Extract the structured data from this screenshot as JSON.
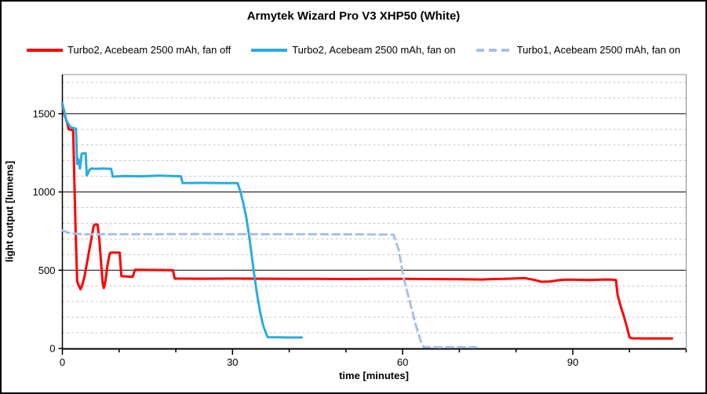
{
  "chart_data": {
    "type": "line",
    "title": "Armytek Wizard Pro V3 XHP50 (White)",
    "xlabel": "time [minutes]",
    "ylabel": "light output [lumens]",
    "xlim": [
      0,
      110
    ],
    "ylim": [
      0,
      1750
    ],
    "x_major_ticks": [
      0,
      30,
      60,
      90
    ],
    "x_minor_step": 10,
    "y_major_ticks": [
      0,
      500,
      1000,
      1500
    ],
    "y_minor_step": 100,
    "grid": "major solid black horizontal, minor dashed gray horizontal, no vertical gridlines",
    "legend_position": "top",
    "colors": {
      "plot_border": "#8c8c8c",
      "major_grid": "#000000",
      "minor_grid": "#c3c3c3",
      "axis": "#000000",
      "text": "#000000"
    },
    "series": [
      {
        "name": "Turbo2, Acebeam 2500 mAh, fan off",
        "color": "#fe0000",
        "style": "solid",
        "points": [
          [
            0,
            1555
          ],
          [
            0.4,
            1490
          ],
          [
            0.9,
            1435
          ],
          [
            1.1,
            1400
          ],
          [
            1.9,
            1395
          ],
          [
            2.3,
            800
          ],
          [
            2.6,
            430
          ],
          [
            2.9,
            400
          ],
          [
            3.2,
            378
          ],
          [
            3.5,
            405
          ],
          [
            3.9,
            460
          ],
          [
            4.3,
            540
          ],
          [
            4.7,
            620
          ],
          [
            5.1,
            700
          ],
          [
            5.5,
            780
          ],
          [
            5.7,
            792
          ],
          [
            6.2,
            792
          ],
          [
            6.5,
            700
          ],
          [
            6.8,
            560
          ],
          [
            7.1,
            420
          ],
          [
            7.3,
            386
          ],
          [
            7.6,
            430
          ],
          [
            7.9,
            520
          ],
          [
            8.3,
            600
          ],
          [
            8.5,
            612
          ],
          [
            10.1,
            612
          ],
          [
            10.4,
            462
          ],
          [
            12.4,
            458
          ],
          [
            12.8,
            503
          ],
          [
            19.5,
            500
          ],
          [
            19.8,
            447
          ],
          [
            25,
            446
          ],
          [
            30,
            447
          ],
          [
            35,
            446
          ],
          [
            40,
            445
          ],
          [
            45,
            445
          ],
          [
            50,
            444
          ],
          [
            55,
            445
          ],
          [
            60,
            445
          ],
          [
            65,
            444
          ],
          [
            70,
            443
          ],
          [
            74,
            441
          ],
          [
            76,
            444
          ],
          [
            78,
            445
          ],
          [
            80,
            448
          ],
          [
            81.5,
            450
          ],
          [
            83,
            440
          ],
          [
            84.5,
            426
          ],
          [
            86,
            428
          ],
          [
            87.5,
            436
          ],
          [
            89,
            440
          ],
          [
            91,
            439
          ],
          [
            93,
            437
          ],
          [
            95,
            440
          ],
          [
            96.5,
            441
          ],
          [
            97.6,
            437
          ],
          [
            97.9,
            345
          ],
          [
            98.4,
            275
          ],
          [
            99.1,
            195
          ],
          [
            99.6,
            130
          ],
          [
            100,
            72
          ],
          [
            100.4,
            65
          ],
          [
            103,
            64
          ],
          [
            107.5,
            64
          ]
        ]
      },
      {
        "name": "Turbo2, Acebeam 2500 mAh, fan on",
        "color": "#29abe2",
        "style": "solid",
        "points": [
          [
            0,
            1565
          ],
          [
            0.7,
            1455
          ],
          [
            1.5,
            1412
          ],
          [
            2.4,
            1405
          ],
          [
            2.6,
            1180
          ],
          [
            2.8,
            1212
          ],
          [
            3.1,
            1150
          ],
          [
            3.4,
            1245
          ],
          [
            4.1,
            1248
          ],
          [
            4.3,
            1105
          ],
          [
            4.8,
            1142
          ],
          [
            5.1,
            1150
          ],
          [
            6.0,
            1148
          ],
          [
            7.0,
            1150
          ],
          [
            8.6,
            1148
          ],
          [
            8.9,
            1098
          ],
          [
            11,
            1102
          ],
          [
            14,
            1100
          ],
          [
            17,
            1104
          ],
          [
            20.9,
            1100
          ],
          [
            21.2,
            1057
          ],
          [
            25,
            1058
          ],
          [
            28,
            1057
          ],
          [
            30.9,
            1057
          ],
          [
            31.4,
            1000
          ],
          [
            31.9,
            928
          ],
          [
            32.4,
            842
          ],
          [
            32.9,
            728
          ],
          [
            33.4,
            590
          ],
          [
            33.9,
            452
          ],
          [
            34.4,
            330
          ],
          [
            34.9,
            228
          ],
          [
            35.4,
            148
          ],
          [
            35.9,
            98
          ],
          [
            36.2,
            72
          ],
          [
            38,
            71
          ],
          [
            40,
            70
          ],
          [
            42.2,
            70
          ]
        ]
      },
      {
        "name": "Turbo1, Acebeam 2500 mAh, fan on",
        "color": "#a7c0e4",
        "style": "dashed",
        "points": [
          [
            0,
            755
          ],
          [
            0.8,
            742
          ],
          [
            2,
            734
          ],
          [
            4,
            729
          ],
          [
            8,
            730
          ],
          [
            15,
            730
          ],
          [
            22,
            731
          ],
          [
            30,
            730
          ],
          [
            38,
            730
          ],
          [
            45,
            730
          ],
          [
            52,
            729
          ],
          [
            58.4,
            727
          ],
          [
            59.3,
            630
          ],
          [
            60.2,
            445
          ],
          [
            61.3,
            295
          ],
          [
            62.4,
            140
          ],
          [
            63.3,
            35
          ],
          [
            63.7,
            10
          ],
          [
            66,
            8
          ],
          [
            69,
            9
          ],
          [
            72.9,
            8
          ]
        ]
      }
    ]
  }
}
